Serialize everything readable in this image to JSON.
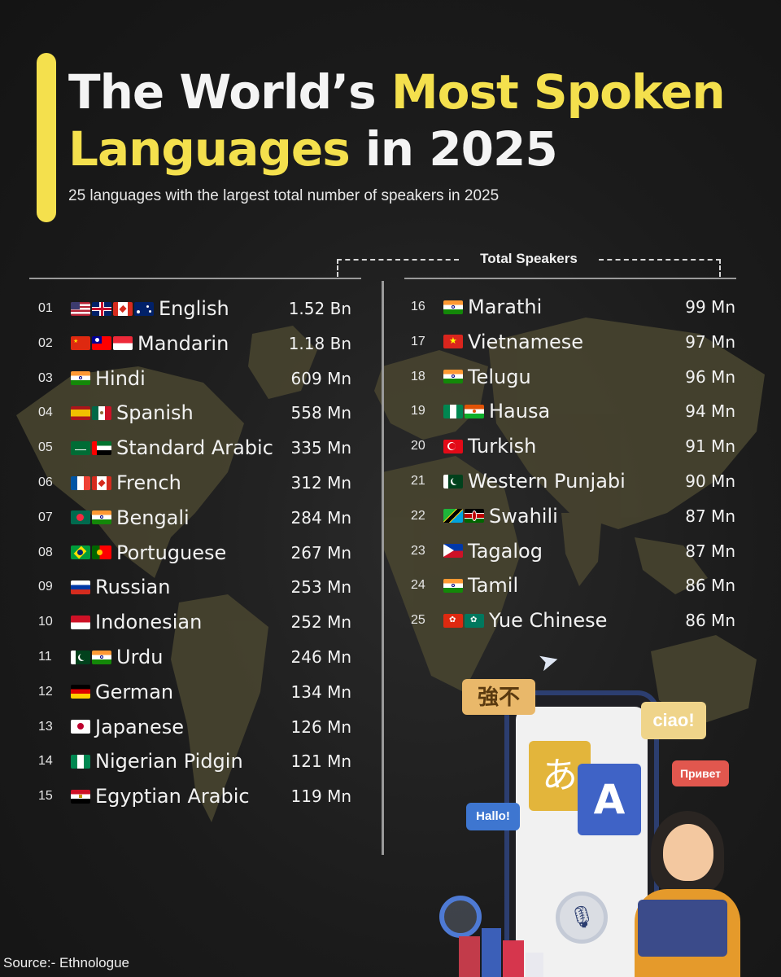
{
  "header": {
    "title_part1": "The World’s ",
    "title_highlight1": "Most Spoken",
    "title_highlight2": "Languages",
    "title_part2": " in 2025",
    "subtitle": "25 languages with the largest total number of speakers in 2025"
  },
  "column_header": "Total Speakers",
  "colors": {
    "accent": "#f4e04d",
    "background": "#1b1b1b",
    "text": "#f2f2f2",
    "map": "#4f4a30"
  },
  "languages": [
    {
      "rank": "01",
      "name": "English",
      "speakers": "1.52 Bn",
      "flags": [
        "us",
        "uk",
        "canada",
        "australia"
      ]
    },
    {
      "rank": "02",
      "name": "Mandarin",
      "speakers": "1.18 Bn",
      "flags": [
        "china",
        "taiwan",
        "singapore"
      ]
    },
    {
      "rank": "03",
      "name": "Hindi",
      "speakers": "609 Mn",
      "flags": [
        "india"
      ]
    },
    {
      "rank": "04",
      "name": "Spanish",
      "speakers": "558 Mn",
      "flags": [
        "spain",
        "mexico"
      ]
    },
    {
      "rank": "05",
      "name": "Standard Arabic",
      "speakers": "335 Mn",
      "flags": [
        "saudi-arabia",
        "uae"
      ]
    },
    {
      "rank": "06",
      "name": "French",
      "speakers": "312 Mn",
      "flags": [
        "france",
        "canada"
      ]
    },
    {
      "rank": "07",
      "name": "Bengali",
      "speakers": "284 Mn",
      "flags": [
        "bangladesh",
        "india"
      ]
    },
    {
      "rank": "08",
      "name": "Portuguese",
      "speakers": "267 Mn",
      "flags": [
        "brazil",
        "portugal"
      ]
    },
    {
      "rank": "09",
      "name": "Russian",
      "speakers": "253 Mn",
      "flags": [
        "russia"
      ]
    },
    {
      "rank": "10",
      "name": "Indonesian",
      "speakers": "252 Mn",
      "flags": [
        "indonesia"
      ]
    },
    {
      "rank": "11",
      "name": "Urdu",
      "speakers": "246 Mn",
      "flags": [
        "pakistan",
        "india"
      ]
    },
    {
      "rank": "12",
      "name": "German",
      "speakers": "134 Mn",
      "flags": [
        "germany"
      ]
    },
    {
      "rank": "13",
      "name": "Japanese",
      "speakers": "126 Mn",
      "flags": [
        "japan"
      ]
    },
    {
      "rank": "14",
      "name": "Nigerian Pidgin",
      "speakers": "121 Mn",
      "flags": [
        "nigeria"
      ]
    },
    {
      "rank": "15",
      "name": "Egyptian Arabic",
      "speakers": "119 Mn",
      "flags": [
        "egypt"
      ]
    },
    {
      "rank": "16",
      "name": "Marathi",
      "speakers": "99 Mn",
      "flags": [
        "india"
      ]
    },
    {
      "rank": "17",
      "name": "Vietnamese",
      "speakers": "97 Mn",
      "flags": [
        "vietnam"
      ]
    },
    {
      "rank": "18",
      "name": "Telugu",
      "speakers": "96 Mn",
      "flags": [
        "india"
      ]
    },
    {
      "rank": "19",
      "name": "Hausa",
      "speakers": "94 Mn",
      "flags": [
        "nigeria",
        "niger"
      ]
    },
    {
      "rank": "20",
      "name": "Turkish",
      "speakers": "91 Mn",
      "flags": [
        "turkey"
      ]
    },
    {
      "rank": "21",
      "name": "Western Punjabi",
      "speakers": "90 Mn",
      "flags": [
        "pakistan"
      ]
    },
    {
      "rank": "22",
      "name": "Swahili",
      "speakers": "87 Mn",
      "flags": [
        "tanzania",
        "kenya"
      ]
    },
    {
      "rank": "23",
      "name": "Tagalog",
      "speakers": "87 Mn",
      "flags": [
        "philippines"
      ]
    },
    {
      "rank": "24",
      "name": "Tamil",
      "speakers": "86 Mn",
      "flags": [
        "india"
      ]
    },
    {
      "rank": "25",
      "name": "Yue Chinese",
      "speakers": "86 Mn",
      "flags": [
        "hong-kong",
        "macau"
      ]
    }
  ],
  "illustration": {
    "bubble_chinese": "強不",
    "bubble_ciao": "ciao!",
    "bubble_privet": "Привет",
    "bubble_hallo": "Hallo!",
    "card_hiragana": "あ",
    "card_latin": "A"
  },
  "source": "Source:- Ethnologue"
}
